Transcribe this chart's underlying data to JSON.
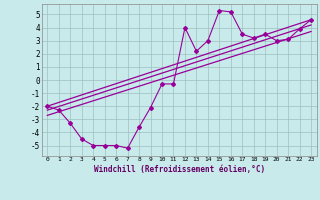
{
  "background_color": "#c8eaea",
  "grid_color": "#9fbfbf",
  "line_color": "#990099",
  "x_data": [
    0,
    1,
    2,
    3,
    4,
    5,
    6,
    7,
    8,
    9,
    10,
    11,
    12,
    13,
    14,
    15,
    16,
    17,
    18,
    19,
    20,
    21,
    22,
    23
  ],
  "scatter_y": [
    -2.0,
    -2.3,
    -3.3,
    -4.5,
    -5.0,
    -5.0,
    -5.0,
    -5.2,
    -3.6,
    -2.1,
    -0.3,
    -0.3,
    4.0,
    2.2,
    3.0,
    5.3,
    5.2,
    3.5,
    3.2,
    3.5,
    3.0,
    3.1,
    3.9,
    4.6
  ],
  "line1_x": [
    0,
    23
  ],
  "line1_y": [
    -2.0,
    4.6
  ],
  "line2_x": [
    0,
    23
  ],
  "line2_y": [
    -2.3,
    4.2
  ],
  "line3_x": [
    0,
    23
  ],
  "line3_y": [
    -2.7,
    3.7
  ],
  "xlim": [
    -0.5,
    23.5
  ],
  "ylim": [
    -5.8,
    5.8
  ],
  "yticks": [
    -5,
    -4,
    -3,
    -2,
    -1,
    0,
    1,
    2,
    3,
    4,
    5
  ],
  "xtick_labels": [
    "0",
    "1",
    "2",
    "3",
    "4",
    "5",
    "6",
    "7",
    "8",
    "9",
    "10",
    "11",
    "12",
    "13",
    "14",
    "15",
    "16",
    "17",
    "18",
    "19",
    "20",
    "21",
    "22",
    "23"
  ],
  "xlabel": "Windchill (Refroidissement éolien,°C)",
  "marker": "D",
  "marker_size": 2.0,
  "line_width": 0.8
}
